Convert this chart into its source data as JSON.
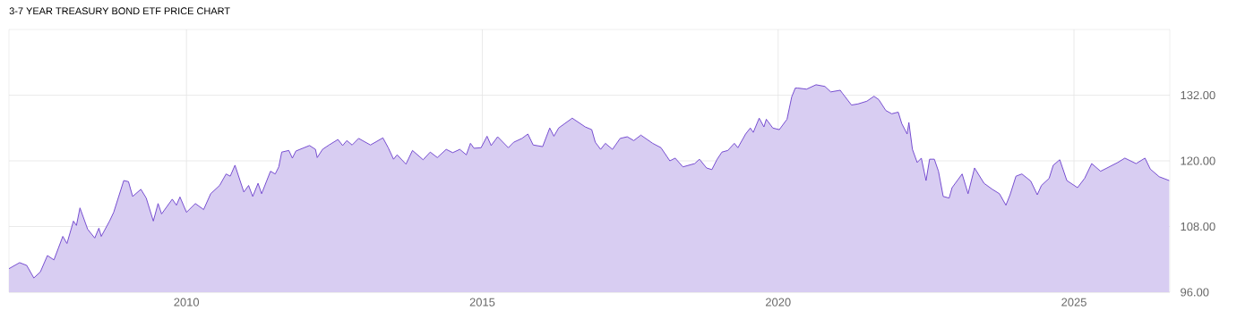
{
  "chart_data": {
    "type": "area",
    "title": "3-7 YEAR TREASURY BOND ETF PRICE CHART",
    "color": "#6a3dcc",
    "grid": true,
    "xlim": [
      2007.0,
      2026.62
    ],
    "xticks": [
      2010,
      2015,
      2020,
      2025
    ],
    "ylim": [
      96,
      144
    ],
    "yticks": [
      {
        "value": 96,
        "label": "96.00"
      },
      {
        "value": 108,
        "label": "108.00"
      },
      {
        "value": 120,
        "label": "120.00"
      },
      {
        "value": 132,
        "label": "132.00"
      }
    ],
    "x": [
      2007.0,
      2007.18,
      2007.3,
      2007.42,
      2007.53,
      2007.65,
      2007.76,
      2007.91,
      2007.98,
      2008.09,
      2008.14,
      2008.2,
      2008.33,
      2008.45,
      2008.52,
      2008.56,
      2008.7,
      2008.77,
      2008.94,
      2009.02,
      2009.09,
      2009.23,
      2009.32,
      2009.44,
      2009.52,
      2009.58,
      2009.76,
      2009.83,
      2009.89,
      2010.0,
      2010.15,
      2010.29,
      2010.41,
      2010.56,
      2010.67,
      2010.74,
      2010.82,
      2010.97,
      2011.05,
      2011.12,
      2011.21,
      2011.27,
      2011.42,
      2011.5,
      2011.56,
      2011.61,
      2011.73,
      2011.79,
      2011.85,
      2012.08,
      2012.18,
      2012.21,
      2012.3,
      2012.41,
      2012.56,
      2012.64,
      2012.71,
      2012.8,
      2012.91,
      2013.11,
      2013.32,
      2013.41,
      2013.5,
      2013.56,
      2013.71,
      2013.82,
      2014.0,
      2014.12,
      2014.24,
      2014.39,
      2014.5,
      2014.62,
      2014.73,
      2014.8,
      2014.86,
      2014.98,
      2015.08,
      2015.15,
      2015.26,
      2015.44,
      2015.53,
      2015.67,
      2015.77,
      2015.86,
      2016.02,
      2016.14,
      2016.21,
      2016.29,
      2016.52,
      2016.74,
      2016.85,
      2016.91,
      2017.0,
      2017.08,
      2017.2,
      2017.33,
      2017.45,
      2017.56,
      2017.68,
      2017.88,
      2018.02,
      2018.17,
      2018.26,
      2018.39,
      2018.59,
      2018.67,
      2018.79,
      2018.88,
      2018.97,
      2019.05,
      2019.15,
      2019.26,
      2019.32,
      2019.45,
      2019.53,
      2019.58,
      2019.68,
      2019.76,
      2019.8,
      2019.91,
      2020.02,
      2020.15,
      2020.23,
      2020.29,
      2020.33,
      2020.48,
      2020.64,
      2020.79,
      2020.89,
      2021.05,
      2021.09,
      2021.24,
      2021.35,
      2021.5,
      2021.62,
      2021.7,
      2021.82,
      2021.92,
      2022.03,
      2022.09,
      2022.18,
      2022.21,
      2022.27,
      2022.35,
      2022.42,
      2022.5,
      2022.56,
      2022.64,
      2022.71,
      2022.79,
      2022.89,
      2022.94,
      2023.11,
      2023.21,
      2023.32,
      2023.48,
      2023.62,
      2023.74,
      2023.85,
      2023.92,
      2024.02,
      2024.12,
      2024.27,
      2024.38,
      2024.45,
      2024.58,
      2024.65,
      2024.76,
      2024.88,
      2025.06,
      2025.18,
      2025.3,
      2025.45,
      2025.56,
      2025.74,
      2025.86,
      2026.05,
      2026.2,
      2026.29,
      2026.44,
      2026.61
    ],
    "values": [
      100.3,
      101.4,
      100.9,
      98.6,
      99.7,
      102.7,
      101.9,
      106.2,
      104.9,
      109.0,
      108.2,
      111.4,
      107.5,
      105.9,
      107.7,
      106.2,
      109.0,
      110.6,
      116.4,
      116.2,
      113.5,
      114.8,
      113.2,
      109.0,
      112.2,
      110.3,
      113.0,
      111.9,
      113.4,
      110.6,
      112.2,
      111.1,
      114.0,
      115.5,
      117.6,
      117.2,
      119.2,
      114.3,
      115.5,
      113.5,
      115.9,
      114.0,
      118.1,
      117.6,
      118.9,
      121.6,
      121.9,
      120.5,
      121.8,
      122.8,
      122.1,
      120.6,
      122.1,
      122.9,
      123.9,
      122.8,
      123.7,
      122.9,
      124.1,
      122.9,
      124.2,
      122.4,
      120.3,
      121.1,
      119.4,
      121.9,
      120.2,
      121.6,
      120.6,
      122.1,
      121.5,
      122.1,
      121.1,
      123.2,
      122.3,
      122.4,
      124.5,
      122.8,
      124.4,
      122.4,
      123.4,
      124.1,
      124.9,
      122.9,
      122.6,
      126.0,
      124.5,
      126.0,
      127.8,
      126.2,
      125.7,
      123.4,
      122.1,
      123.2,
      122.1,
      124.1,
      124.4,
      123.7,
      124.7,
      123.2,
      122.4,
      120.0,
      120.5,
      118.9,
      119.5,
      120.3,
      118.7,
      118.4,
      120.3,
      121.6,
      121.9,
      123.2,
      122.4,
      124.9,
      126.0,
      125.2,
      127.8,
      126.2,
      127.6,
      126.0,
      125.7,
      127.6,
      131.7,
      133.3,
      133.3,
      133.1,
      133.9,
      133.6,
      132.6,
      132.9,
      132.3,
      130.2,
      130.4,
      130.9,
      131.8,
      131.2,
      129.2,
      128.6,
      128.9,
      126.8,
      124.9,
      127.0,
      122.1,
      119.7,
      120.5,
      116.4,
      120.3,
      120.3,
      118.1,
      113.5,
      113.2,
      115.1,
      117.6,
      114.0,
      118.7,
      115.9,
      114.8,
      114.0,
      111.9,
      113.8,
      117.2,
      117.6,
      116.3,
      113.8,
      115.5,
      116.8,
      119.2,
      120.2,
      116.4,
      115.1,
      116.8,
      119.5,
      118.1,
      118.7,
      119.7,
      120.5,
      119.5,
      120.5,
      118.5,
      117.1,
      116.4
    ]
  }
}
